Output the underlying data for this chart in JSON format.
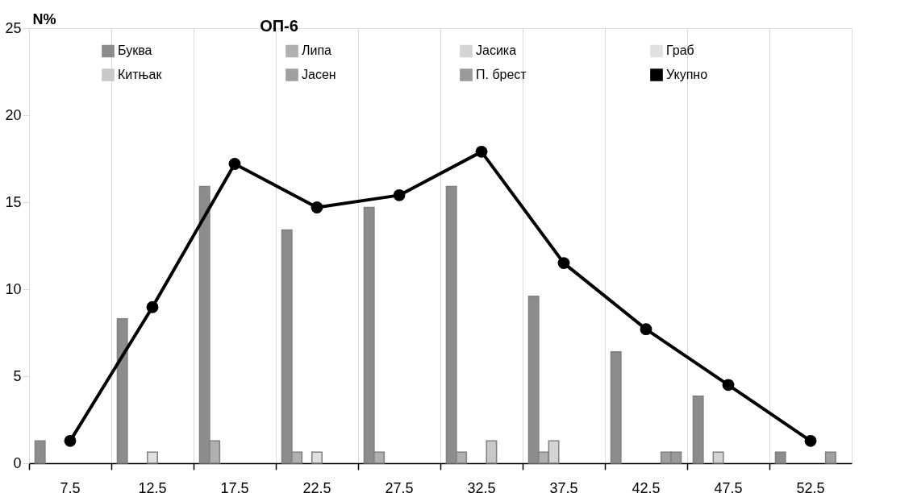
{
  "chart_data": {
    "type": "bar",
    "title": "ОП-6",
    "ylabel": "N%",
    "categories": [
      "7.5",
      "12.5",
      "17.5",
      "22.5",
      "27.5",
      "32.5",
      "37.5",
      "42.5",
      "47.5",
      "52.5"
    ],
    "series": [
      {
        "name": "Буква",
        "color": "#8c8c8c",
        "values": [
          1.28,
          8.3,
          15.9,
          13.4,
          14.7,
          15.9,
          9.6,
          6.4,
          3.85,
          0.64
        ]
      },
      {
        "name": "Липа",
        "color": "#b0b0b0",
        "values": [
          null,
          null,
          1.28,
          0.64,
          0.64,
          0.64,
          0.64,
          null,
          null,
          null
        ]
      },
      {
        "name": "Јасика",
        "color": "#d4d4d4",
        "values": [
          null,
          null,
          null,
          null,
          null,
          null,
          1.28,
          null,
          0.64,
          null
        ]
      },
      {
        "name": "Граб",
        "color": "#e0e0e0",
        "values": [
          null,
          0.64,
          null,
          0.64,
          null,
          null,
          null,
          null,
          null,
          null
        ]
      },
      {
        "name": "Китњак",
        "color": "#c8c8c8",
        "values": [
          null,
          null,
          null,
          null,
          null,
          1.28,
          null,
          null,
          null,
          null
        ]
      },
      {
        "name": "Јасен",
        "color": "#a0a0a0",
        "values": [
          null,
          null,
          null,
          null,
          null,
          null,
          null,
          0.64,
          null,
          0.64
        ]
      },
      {
        "name": "П. брест",
        "color": "#9a9a9a",
        "values": [
          null,
          null,
          null,
          null,
          null,
          null,
          null,
          0.64,
          null,
          null
        ]
      },
      {
        "name": "Укупно",
        "type": "line",
        "color": "#000000",
        "marker": "circle",
        "line_style": "solid",
        "values": [
          1.28,
          8.97,
          17.2,
          14.7,
          15.4,
          17.9,
          11.5,
          7.7,
          4.5,
          1.28
        ]
      }
    ],
    "ylim": [
      0,
      25
    ],
    "yticks": [
      0,
      5,
      10,
      15,
      20,
      25
    ],
    "grid": "x",
    "legend": "top"
  }
}
